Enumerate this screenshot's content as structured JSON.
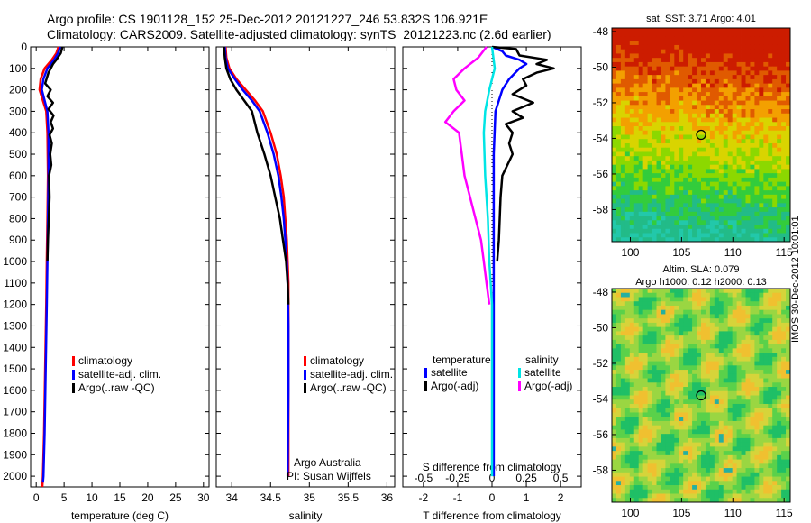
{
  "header": {
    "line1": "Argo profile: CS 1901128_152 25-Dec-2012 20121227_246 53.832S 106.921E",
    "line2": "Climatology: CARS2009. Satellite-adjusted climatology: synTS_20121223.nc (2.6d earlier)"
  },
  "stamp": "IMOS 30-Dec-2012 10:01:01",
  "colors": {
    "climatology": "#ff0000",
    "satellite": "#0000ff",
    "argo": "#000000",
    "sal_satellite": "#00e5e5",
    "sal_argo": "#ff00ff"
  },
  "chart_data": [
    {
      "type": "line",
      "id": "temperature",
      "xlabel": "temperature (deg C)",
      "ylabel": "",
      "xlim": [
        -1,
        31
      ],
      "ylim": [
        2050,
        0
      ],
      "xticks": [
        0,
        5,
        10,
        15,
        20,
        25,
        30
      ],
      "yticks": [
        0,
        100,
        200,
        300,
        400,
        500,
        600,
        700,
        800,
        900,
        1000,
        1100,
        1200,
        1300,
        1400,
        1500,
        1600,
        1700,
        1800,
        1900,
        2000
      ],
      "legend": [
        "climatology",
        "satellite-adj. clim.",
        "Argo(..raw -QC)"
      ],
      "series": [
        {
          "name": "climatology",
          "color": "#ff0000",
          "points": [
            [
              4.0,
              0
            ],
            [
              3.6,
              30
            ],
            [
              2.8,
              60
            ],
            [
              1.5,
              100
            ],
            [
              0.8,
              150
            ],
            [
              0.6,
              200
            ],
            [
              1.2,
              250
            ],
            [
              1.8,
              300
            ],
            [
              2.0,
              400
            ],
            [
              2.1,
              600
            ],
            [
              2.0,
              800
            ],
            [
              1.9,
              1000
            ],
            [
              1.8,
              1200
            ],
            [
              1.6,
              1500
            ],
            [
              1.4,
              1800
            ],
            [
              1.2,
              2000
            ],
            [
              1.1,
              2050
            ]
          ]
        },
        {
          "name": "satellite-adj. clim.",
          "color": "#0000ff",
          "points": [
            [
              4.3,
              0
            ],
            [
              3.9,
              30
            ],
            [
              3.2,
              60
            ],
            [
              2.0,
              100
            ],
            [
              1.3,
              150
            ],
            [
              1.0,
              200
            ],
            [
              1.5,
              250
            ],
            [
              2.0,
              300
            ],
            [
              2.2,
              400
            ],
            [
              2.2,
              600
            ],
            [
              2.1,
              800
            ],
            [
              2.0,
              1000
            ],
            [
              1.9,
              1200
            ],
            [
              1.7,
              1500
            ],
            [
              1.5,
              1800
            ],
            [
              1.3,
              2000
            ],
            [
              1.2,
              2030
            ]
          ]
        },
        {
          "name": "Argo(..raw -QC)",
          "color": "#000000",
          "points": [
            [
              4.7,
              0
            ],
            [
              4.4,
              30
            ],
            [
              3.6,
              60
            ],
            [
              3.0,
              80
            ],
            [
              2.2,
              120
            ],
            [
              1.6,
              170
            ],
            [
              2.6,
              200
            ],
            [
              2.0,
              230
            ],
            [
              3.0,
              260
            ],
            [
              2.2,
              290
            ],
            [
              3.1,
              320
            ],
            [
              2.6,
              350
            ],
            [
              3.0,
              380
            ],
            [
              2.4,
              410
            ],
            [
              2.8,
              450
            ],
            [
              2.5,
              500
            ],
            [
              2.7,
              550
            ],
            [
              2.3,
              600
            ],
            [
              2.4,
              700
            ],
            [
              2.1,
              900
            ],
            [
              2.0,
              1000
            ]
          ]
        }
      ]
    },
    {
      "type": "line",
      "id": "salinity",
      "xlabel": "salinity",
      "ylabel": "",
      "xlim": [
        33.8,
        36.1
      ],
      "ylim": [
        2050,
        0
      ],
      "xticks": [
        34,
        34.5,
        35,
        35.5,
        36
      ],
      "legend": [
        "climatology",
        "satellite-adj. clim.",
        "Argo(..raw -QC)"
      ],
      "annotations": [
        "Argo Australia",
        "PI: Susan Wijffels"
      ],
      "series": [
        {
          "name": "climatology",
          "color": "#ff0000",
          "points": [
            [
              33.92,
              0
            ],
            [
              33.93,
              50
            ],
            [
              33.97,
              100
            ],
            [
              34.06,
              150
            ],
            [
              34.18,
              200
            ],
            [
              34.3,
              250
            ],
            [
              34.4,
              300
            ],
            [
              34.5,
              400
            ],
            [
              34.58,
              500
            ],
            [
              34.63,
              600
            ],
            [
              34.67,
              700
            ],
            [
              34.69,
              800
            ],
            [
              34.71,
              900
            ],
            [
              34.72,
              1000
            ],
            [
              34.73,
              1100
            ],
            [
              34.73,
              1300
            ],
            [
              34.73,
              1600
            ],
            [
              34.73,
              2000
            ]
          ]
        },
        {
          "name": "satellite-adj. clim.",
          "color": "#0000ff",
          "points": [
            [
              33.91,
              0
            ],
            [
              33.92,
              50
            ],
            [
              33.95,
              100
            ],
            [
              34.04,
              150
            ],
            [
              34.14,
              200
            ],
            [
              34.26,
              250
            ],
            [
              34.36,
              300
            ],
            [
              34.46,
              400
            ],
            [
              34.54,
              500
            ],
            [
              34.6,
              600
            ],
            [
              34.64,
              700
            ],
            [
              34.67,
              800
            ],
            [
              34.69,
              900
            ],
            [
              34.71,
              1000
            ],
            [
              34.72,
              1100
            ],
            [
              34.73,
              1300
            ],
            [
              34.73,
              1600
            ],
            [
              34.72,
              2000
            ]
          ]
        },
        {
          "name": "Argo(..raw -QC)",
          "color": "#000000",
          "points": [
            [
              33.9,
              0
            ],
            [
              33.91,
              50
            ],
            [
              33.93,
              100
            ],
            [
              33.98,
              150
            ],
            [
              34.06,
              200
            ],
            [
              34.16,
              250
            ],
            [
              34.26,
              300
            ],
            [
              34.33,
              400
            ],
            [
              34.42,
              500
            ],
            [
              34.5,
              600
            ],
            [
              34.56,
              700
            ],
            [
              34.62,
              800
            ],
            [
              34.66,
              900
            ],
            [
              34.7,
              1000
            ],
            [
              34.72,
              1100
            ],
            [
              34.73,
              1200
            ]
          ]
        }
      ]
    },
    {
      "type": "line",
      "id": "differences",
      "xlabel": "T difference from climatology",
      "top_label": "S difference from climatology",
      "xlim": [
        -2.6,
        2.6
      ],
      "ylim": [
        2050,
        0
      ],
      "xticks": [
        -2,
        -1,
        0,
        1,
        2
      ],
      "top_ticks": [
        "-0.5",
        "-0.25",
        "0",
        "0.25",
        "0.5"
      ],
      "legend": {
        "temperature_title": "temperature",
        "salinity_title": "salinity",
        "temperature": [
          "satellite",
          "Argo(-adj)"
        ],
        "salinity": [
          "satellite",
          "Argo(-adj)"
        ]
      },
      "series": [
        {
          "name": "temperature satellite",
          "color": "#0000ff",
          "points": [
            [
              0,
              0
            ],
            [
              0.3,
              20
            ],
            [
              0.4,
              40
            ],
            [
              0.8,
              60
            ],
            [
              1.0,
              80
            ],
            [
              0.8,
              100
            ],
            [
              0.5,
              150
            ],
            [
              0.3,
              200
            ],
            [
              0.1,
              300
            ],
            [
              0.05,
              500
            ],
            [
              0.05,
              700
            ],
            [
              0.05,
              1000
            ],
            [
              0.05,
              1500
            ],
            [
              0.05,
              2000
            ]
          ]
        },
        {
          "name": "temperature Argo(-adj)",
          "color": "#000000",
          "points": [
            [
              0,
              0
            ],
            [
              0.7,
              10
            ],
            [
              0.8,
              40
            ],
            [
              1.6,
              60
            ],
            [
              1.3,
              80
            ],
            [
              1.8,
              100
            ],
            [
              1.3,
              120
            ],
            [
              0.9,
              150
            ],
            [
              1.0,
              180
            ],
            [
              0.6,
              220
            ],
            [
              1.2,
              260
            ],
            [
              0.6,
              300
            ],
            [
              0.9,
              330
            ],
            [
              0.4,
              360
            ],
            [
              0.6,
              400
            ],
            [
              0.5,
              450
            ],
            [
              0.6,
              500
            ],
            [
              0.3,
              600
            ],
            [
              0.25,
              700
            ],
            [
              0.2,
              900
            ],
            [
              0.15,
              1000
            ]
          ]
        },
        {
          "name": "salinity satellite",
          "color": "#00e5e5",
          "points": [
            [
              0,
              0
            ],
            [
              0.02,
              100
            ],
            [
              -0.02,
              200
            ],
            [
              -0.05,
              300
            ],
            [
              -0.06,
              400
            ],
            [
              -0.05,
              600
            ],
            [
              -0.03,
              800
            ],
            [
              -0.02,
              1000
            ],
            [
              0,
              1200
            ],
            [
              0,
              1500
            ],
            [
              0,
              2000
            ]
          ]
        },
        {
          "name": "salinity Argo(-adj)",
          "color": "#ff00ff",
          "points": [
            [
              -0.04,
              0
            ],
            [
              -0.1,
              50
            ],
            [
              -0.2,
              100
            ],
            [
              -0.28,
              150
            ],
            [
              -0.26,
              200
            ],
            [
              -0.2,
              250
            ],
            [
              -0.28,
              300
            ],
            [
              -0.34,
              350
            ],
            [
              -0.24,
              400
            ],
            [
              -0.22,
              500
            ],
            [
              -0.2,
              600
            ],
            [
              -0.16,
              700
            ],
            [
              -0.12,
              800
            ],
            [
              -0.08,
              900
            ],
            [
              -0.06,
              1000
            ],
            [
              -0.04,
              1100
            ],
            [
              -0.02,
              1200
            ]
          ]
        }
      ]
    },
    {
      "type": "heatmap",
      "id": "sst_map",
      "title": "sat. SST: 3.71 Argo: 4.01",
      "xlim": [
        98.2,
        115.6
      ],
      "ylim": [
        -59.8,
        -47.8
      ],
      "xticks": [
        100,
        105,
        110,
        115
      ],
      "yticks": [
        -48,
        -50,
        -52,
        -54,
        -56,
        -58
      ],
      "marker": {
        "lon": 106.9,
        "lat": -53.8
      },
      "color_bands": [
        "#cc1c00",
        "#e05a00",
        "#f3a000",
        "#d9d400",
        "#8cd800",
        "#33cc3c",
        "#22bb88",
        "#22c8aa"
      ]
    },
    {
      "type": "heatmap",
      "id": "sla_map",
      "title": "Altim. SLA: 0.079",
      "subtitle": "Argo h1000: 0.12 h2000: 0.13",
      "xlim": [
        98.2,
        115.6
      ],
      "ylim": [
        -59.8,
        -47.8
      ],
      "xticks": [
        100,
        105,
        110,
        115
      ],
      "yticks": [
        -48,
        -50,
        -52,
        -54,
        -56,
        -58
      ],
      "marker": {
        "lon": 106.9,
        "lat": -53.8
      },
      "color_bands": [
        "#1fbf66",
        "#5ad14a",
        "#9ad642",
        "#d6d43a",
        "#f0c030",
        "#26b0a0"
      ]
    }
  ]
}
